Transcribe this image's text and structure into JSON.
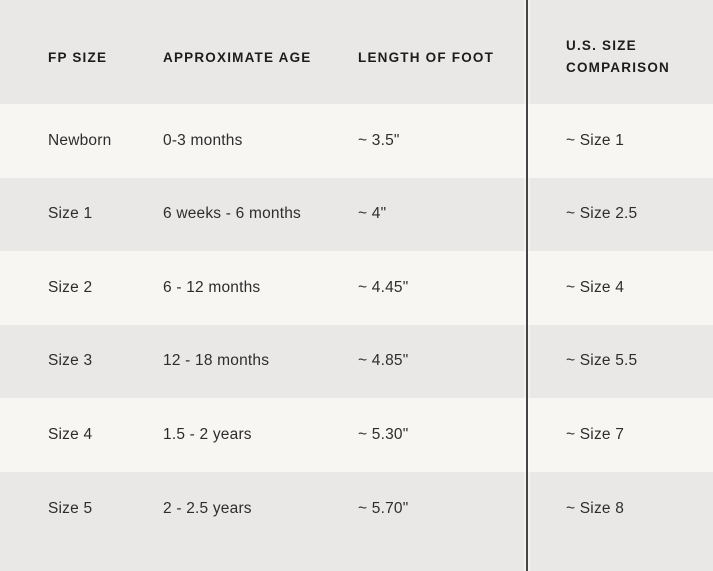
{
  "chart_data": {
    "type": "table",
    "columns": [
      "FP SIZE",
      "APPROXIMATE AGE",
      "LENGTH OF FOOT",
      "U.S. SIZE COMPARISON"
    ],
    "rows": [
      {
        "fp_size": "Newborn",
        "approximate_age": "0-3 months",
        "length_of_foot": "~ 3.5\"",
        "us_size_comparison": "~ Size 1"
      },
      {
        "fp_size": "Size 1",
        "approximate_age": "6 weeks - 6 months",
        "length_of_foot": "~ 4\"",
        "us_size_comparison": "~ Size 2.5"
      },
      {
        "fp_size": "Size 2",
        "approximate_age": "6 - 12 months",
        "length_of_foot": "~ 4.45\"",
        "us_size_comparison": "~ Size 4"
      },
      {
        "fp_size": "Size 3",
        "approximate_age": "12 - 18 months",
        "length_of_foot": "~ 4.85\"",
        "us_size_comparison": "~ Size 5.5"
      },
      {
        "fp_size": "Size 4",
        "approximate_age": "1.5 - 2 years",
        "length_of_foot": "~ 5.30\"",
        "us_size_comparison": "~ Size 7"
      },
      {
        "fp_size": "Size 5",
        "approximate_age": "2 - 2.5 years",
        "length_of_foot": "~ 5.70\"",
        "us_size_comparison": "~ Size 8"
      }
    ]
  },
  "colors": {
    "row_gray": "#e9e8e6",
    "row_light": "#f7f6f3",
    "divider": "#454545",
    "header_text": "#1c1c1c",
    "body_text": "#2d2d2d"
  }
}
